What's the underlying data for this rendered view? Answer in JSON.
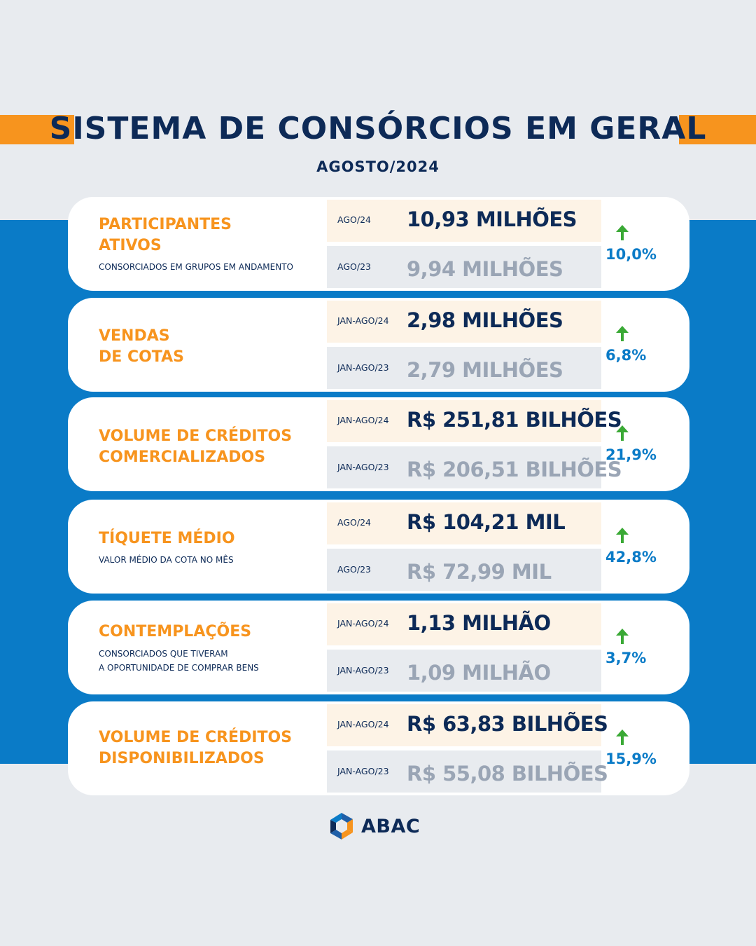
{
  "header": {
    "title": "SISTEMA DE CONSÓRCIOS EM GERAL",
    "subtitle": "AGOSTO/2024"
  },
  "colors": {
    "accent": "#f7941e",
    "navy": "#0d2a57",
    "blue": "#0a7bc7",
    "up_arrow": "#3aa935"
  },
  "cards": [
    {
      "label_line1": "PARTICIPANTES",
      "label_line2": "ATIVOS",
      "description_line1": "CONSORCIADOS EM GRUPOS EM ANDAMENTO",
      "description_line2": "",
      "current_period": "AGO/24",
      "current_value": "10,93 MILHÕES",
      "previous_period": "AGO/23",
      "previous_value": "9,94 MILHÕES",
      "change": "10,0%",
      "trend_icon": "arrow-up-icon"
    },
    {
      "label_line1": "VENDAS",
      "label_line2": "DE COTAS",
      "description_line1": "",
      "description_line2": "",
      "current_period": "JAN-AGO/24",
      "current_value": "2,98 MILHÕES",
      "previous_period": "JAN-AGO/23",
      "previous_value": "2,79 MILHÕES",
      "change": "6,8%",
      "trend_icon": "arrow-up-icon"
    },
    {
      "label_line1": "VOLUME DE CRÉDITOS",
      "label_line2": "COMERCIALIZADOS",
      "description_line1": "",
      "description_line2": "",
      "current_period": "JAN-AGO/24",
      "current_value": "R$ 251,81 BILHÕES",
      "previous_period": "JAN-AGO/23",
      "previous_value": "R$ 206,51 BILHÕES",
      "change": "21,9%",
      "trend_icon": "arrow-up-icon"
    },
    {
      "label_line1": "TÍQUETE MÉDIO",
      "label_line2": "",
      "description_line1": "VALOR MÉDIO DA COTA NO MÊS",
      "description_line2": "",
      "current_period": "AGO/24",
      "current_value": "R$ 104,21 MIL",
      "previous_period": "AGO/23",
      "previous_value": "R$ 72,99 MIL",
      "change": "42,8%",
      "trend_icon": "arrow-up-icon"
    },
    {
      "label_line1": "CONTEMPLAÇÕES",
      "label_line2": "",
      "description_line1": "CONSORCIADOS QUE TIVERAM",
      "description_line2": "A OPORTUNIDADE DE COMPRAR BENS",
      "current_period": "JAN-AGO/24",
      "current_value": "1,13 MILHÃO",
      "previous_period": "JAN-AGO/23",
      "previous_value": "1,09 MILHÃO",
      "change": "3,7%",
      "trend_icon": "arrow-up-icon"
    },
    {
      "label_line1": "VOLUME DE CRÉDITOS",
      "label_line2": "DISPONIBILIZADOS",
      "description_line1": "",
      "description_line2": "",
      "current_period": "JAN-AGO/24",
      "current_value": "R$ 63,83 BILHÕES",
      "previous_period": "JAN-AGO/23",
      "previous_value": "R$ 55,08 BILHÕES",
      "change": "15,9%",
      "trend_icon": "arrow-up-icon"
    }
  ],
  "footer": {
    "logo_text": "ABAC",
    "logo_icon": "abac-logo-icon"
  }
}
